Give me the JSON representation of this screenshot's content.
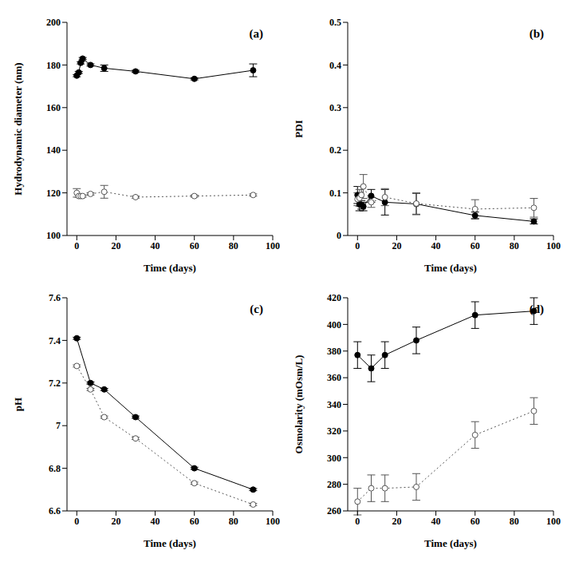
{
  "chart_data": [
    {
      "type": "line",
      "title": "(a)",
      "x_label": "Time  (days)",
      "y_label": "Hydrodynamic diameter (nm)",
      "x": [
        0,
        1,
        2,
        3,
        7,
        14,
        30,
        60,
        90
      ],
      "xlim": [
        -5,
        100
      ],
      "xticks": [
        0,
        20,
        40,
        60,
        80,
        100
      ],
      "ylim": [
        100,
        200
      ],
      "yticks": [
        100,
        120,
        140,
        160,
        180,
        200
      ],
      "grid": false,
      "series": [
        {
          "color": "#000000",
          "marker": "filled_circle",
          "line_style": "solid",
          "values": [
            175,
            176.5,
            181,
            183,
            180,
            178.5,
            177,
            173.5,
            177.5
          ],
          "errors": [
            0.5,
            0.5,
            0.5,
            0.5,
            0.5,
            1.5,
            0.5,
            0.5,
            3
          ]
        },
        {
          "color": "#555555",
          "marker": "open_circle",
          "line_style": "dotted",
          "values": [
            120,
            118.5,
            118.5,
            118.5,
            119.5,
            120.5,
            118,
            118.5,
            119
          ],
          "errors": [
            2,
            0.5,
            0.5,
            0.5,
            0.5,
            3,
            0.5,
            0.5,
            0.5
          ]
        }
      ]
    },
    {
      "type": "line",
      "title": "(b)",
      "x_label": "Time  (days)",
      "y_label": "PDI",
      "x": [
        0,
        1,
        2,
        3,
        7,
        14,
        30,
        60,
        90
      ],
      "xlim": [
        -5,
        100
      ],
      "xticks": [
        0,
        20,
        40,
        60,
        80,
        100
      ],
      "ylim": [
        0,
        0.5
      ],
      "yticks": [
        0,
        0.1,
        0.2,
        0.3,
        0.4,
        0.5
      ],
      "grid": false,
      "series": [
        {
          "color": "#000000",
          "marker": "filled_circle",
          "line_style": "solid",
          "values": [
            0.095,
            0.073,
            0.072,
            0.068,
            0.093,
            0.078,
            0.074,
            0.047,
            0.033
          ],
          "errors": [
            0.02,
            0.015,
            0.01,
            0.01,
            0.015,
            0.03,
            0.025,
            0.008,
            0.006
          ]
        },
        {
          "color": "#555555",
          "marker": "open_circle",
          "line_style": "dotted",
          "values": [
            0.085,
            0.088,
            0.095,
            0.115,
            0.078,
            0.09,
            0.075,
            0.062,
            0.065
          ],
          "errors": [
            0.015,
            0.02,
            0.02,
            0.028,
            0.012,
            0.02,
            0.025,
            0.022,
            0.022
          ]
        }
      ]
    },
    {
      "type": "line",
      "title": "(c)",
      "x_label": "Time  (days)",
      "y_label": "pH",
      "x": [
        0,
        7,
        14,
        30,
        60,
        90
      ],
      "xlim": [
        -5,
        100
      ],
      "xticks": [
        0,
        20,
        40,
        60,
        80,
        100
      ],
      "ylim": [
        6.6,
        7.6
      ],
      "yticks": [
        6.6,
        6.8,
        7,
        7.2,
        7.4,
        7.6
      ],
      "grid": false,
      "series": [
        {
          "color": "#000000",
          "marker": "filled_circle",
          "line_style": "solid",
          "values": [
            7.41,
            7.2,
            7.17,
            7.04,
            6.8,
            6.7
          ],
          "errors": [
            0.005,
            0.005,
            0.005,
            0.005,
            0.005,
            0.005
          ]
        },
        {
          "color": "#555555",
          "marker": "open_circle",
          "line_style": "dotted",
          "values": [
            7.28,
            7.17,
            7.04,
            6.94,
            6.73,
            6.63
          ],
          "errors": [
            0.005,
            0.005,
            0.005,
            0.005,
            0.005,
            0.005
          ]
        }
      ]
    },
    {
      "type": "line",
      "title": "(d)",
      "x_label": "Time  (days)",
      "y_label": "Osmolarity  (mOsm/L)",
      "x": [
        0,
        7,
        14,
        30,
        60,
        90
      ],
      "xlim": [
        -5,
        100
      ],
      "xticks": [
        0,
        20,
        40,
        60,
        80,
        100
      ],
      "ylim": [
        260,
        420
      ],
      "yticks": [
        260,
        280,
        300,
        320,
        340,
        360,
        380,
        400,
        420
      ],
      "grid": false,
      "series": [
        {
          "color": "#000000",
          "marker": "filled_circle",
          "line_style": "solid",
          "values": [
            377,
            367,
            377,
            388,
            407,
            410
          ],
          "errors": [
            10,
            10,
            10,
            10,
            10,
            10
          ]
        },
        {
          "color": "#555555",
          "marker": "open_circle",
          "line_style": "dotted",
          "values": [
            267,
            277,
            277,
            278,
            317,
            335
          ],
          "errors": [
            10,
            10,
            10,
            10,
            10,
            10
          ]
        }
      ]
    }
  ]
}
